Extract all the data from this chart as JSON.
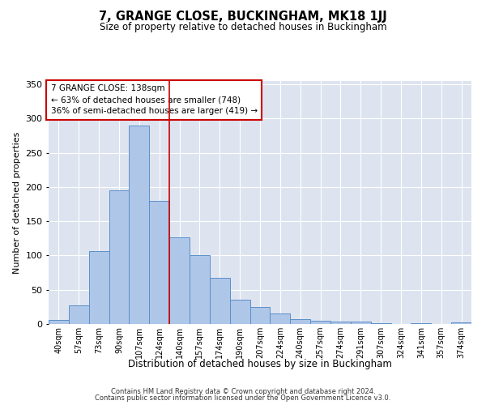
{
  "title": "7, GRANGE CLOSE, BUCKINGHAM, MK18 1JJ",
  "subtitle": "Size of property relative to detached houses in Buckingham",
  "xlabel": "Distribution of detached houses by size in Buckingham",
  "ylabel": "Number of detached properties",
  "categories": [
    "40sqm",
    "57sqm",
    "73sqm",
    "90sqm",
    "107sqm",
    "124sqm",
    "140sqm",
    "157sqm",
    "174sqm",
    "190sqm",
    "207sqm",
    "224sqm",
    "240sqm",
    "257sqm",
    "274sqm",
    "291sqm",
    "307sqm",
    "324sqm",
    "341sqm",
    "357sqm",
    "374sqm"
  ],
  "values": [
    6,
    27,
    107,
    195,
    290,
    180,
    127,
    100,
    67,
    35,
    25,
    15,
    7,
    5,
    3,
    3,
    1,
    0,
    1,
    0,
    2
  ],
  "bar_color": "#aec6e8",
  "bar_edge_color": "#5b8fc9",
  "background_color": "#dde4f0",
  "grid_color": "#ffffff",
  "vline_color": "#cc0000",
  "vline_position": 5.5,
  "annotation_text_line1": "7 GRANGE CLOSE: 138sqm",
  "annotation_text_line2": "← 63% of detached houses are smaller (748)",
  "annotation_text_line3": "36% of semi-detached houses are larger (419) →",
  "footer_line1": "Contains HM Land Registry data © Crown copyright and database right 2024.",
  "footer_line2": "Contains public sector information licensed under the Open Government Licence v3.0.",
  "ylim": [
    0,
    355
  ],
  "yticks": [
    0,
    50,
    100,
    150,
    200,
    250,
    300,
    350
  ]
}
